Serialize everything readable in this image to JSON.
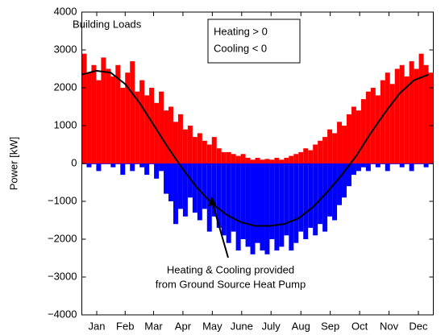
{
  "chart_data": {
    "type": "bar",
    "title": "Building Loads",
    "ylabel": "Power [kW]",
    "annotation": [
      "Heating & Cooling provided",
      "from Ground Source Heat Pump"
    ],
    "xlim": [
      0,
      365
    ],
    "ylim": [
      -4000,
      4000
    ],
    "yticks": [
      {
        "value": -4000,
        "label": "−4000"
      },
      {
        "value": -3000,
        "label": "−3000"
      },
      {
        "value": -2000,
        "label": "−2000"
      },
      {
        "value": -1000,
        "label": "−1000"
      },
      0,
      1000,
      2000,
      3000,
      4000
    ],
    "xticks": [
      {
        "value": 15.5,
        "label": "Jan"
      },
      {
        "value": 45,
        "label": "Feb"
      },
      {
        "value": 74.5,
        "label": "Mar"
      },
      {
        "value": 105,
        "label": "Apr"
      },
      {
        "value": 135.5,
        "label": "May"
      },
      {
        "value": 166,
        "label": "June"
      },
      {
        "value": 196.5,
        "label": "July"
      },
      {
        "value": 227.5,
        "label": "Aug"
      },
      {
        "value": 258,
        "label": "Sep"
      },
      {
        "value": 288.5,
        "label": "Oct"
      },
      {
        "value": 319,
        "label": "Nov"
      },
      {
        "value": 349.5,
        "label": "Dec"
      }
    ],
    "x": [
      0,
      5,
      10,
      15,
      20,
      25,
      30,
      35,
      40,
      45,
      50,
      55,
      60,
      65,
      70,
      75,
      80,
      85,
      90,
      95,
      100,
      105,
      110,
      115,
      120,
      125,
      130,
      135,
      140,
      145,
      150,
      155,
      160,
      165,
      170,
      175,
      180,
      185,
      190,
      195,
      200,
      205,
      210,
      215,
      220,
      225,
      230,
      235,
      240,
      245,
      250,
      255,
      260,
      265,
      270,
      275,
      280,
      285,
      290,
      295,
      300,
      305,
      310,
      315,
      320,
      325,
      330,
      335,
      340,
      345,
      350,
      355,
      360
    ],
    "series": [
      {
        "name": "Heating > 0",
        "color": "#ff0000",
        "type": "bar",
        "values": [
          2900,
          2400,
          2600,
          2200,
          2800,
          2500,
          2300,
          2600,
          2000,
          2400,
          2700,
          1900,
          2200,
          1800,
          2000,
          1600,
          1900,
          1400,
          1500,
          1100,
          1300,
          900,
          1000,
          700,
          800,
          600,
          500,
          700,
          400,
          300,
          300,
          250,
          200,
          250,
          150,
          100,
          150,
          100,
          120,
          100,
          150,
          100,
          150,
          200,
          250,
          300,
          400,
          350,
          500,
          600,
          700,
          900,
          800,
          1100,
          1000,
          1300,
          1500,
          1400,
          1700,
          1900,
          2000,
          1800,
          2200,
          2400,
          2100,
          2500,
          2600,
          2300,
          2700,
          2500,
          2900,
          2600,
          2400
        ]
      },
      {
        "name": "Cooling < 0",
        "color": "#0000ff",
        "type": "bar",
        "values": [
          0,
          -100,
          0,
          -200,
          0,
          0,
          -100,
          0,
          -300,
          0,
          -200,
          0,
          -100,
          -300,
          0,
          -400,
          -200,
          -800,
          -1000,
          -1600,
          -1200,
          -1400,
          -900,
          -1300,
          -1500,
          -1200,
          -1800,
          -1400,
          -1700,
          -1900,
          -2100,
          -1800,
          -2300,
          -2000,
          -2200,
          -2400,
          -2100,
          -2300,
          -2400,
          -2000,
          -2300,
          -2200,
          -1900,
          -2300,
          -2100,
          -1800,
          -2000,
          -1700,
          -1900,
          -1600,
          -1800,
          -1400,
          -1500,
          -1100,
          -900,
          -600,
          -300,
          -200,
          -100,
          -200,
          0,
          -100,
          0,
          -200,
          0,
          0,
          -100,
          0,
          -200,
          0,
          0,
          -100,
          0
        ]
      },
      {
        "color": "#000000",
        "type": "line",
        "x": [
          0,
          15,
          30,
          45,
          60,
          75,
          90,
          105,
          120,
          135,
          150,
          165,
          180,
          195,
          210,
          225,
          240,
          255,
          270,
          285,
          300,
          315,
          330,
          345,
          360
        ],
        "values": [
          2350,
          2450,
          2400,
          2100,
          1600,
          1000,
          400,
          -150,
          -650,
          -1050,
          -1350,
          -1550,
          -1650,
          -1650,
          -1600,
          -1450,
          -1150,
          -750,
          -300,
          200,
          800,
          1350,
          1850,
          2200,
          2350
        ]
      }
    ]
  }
}
